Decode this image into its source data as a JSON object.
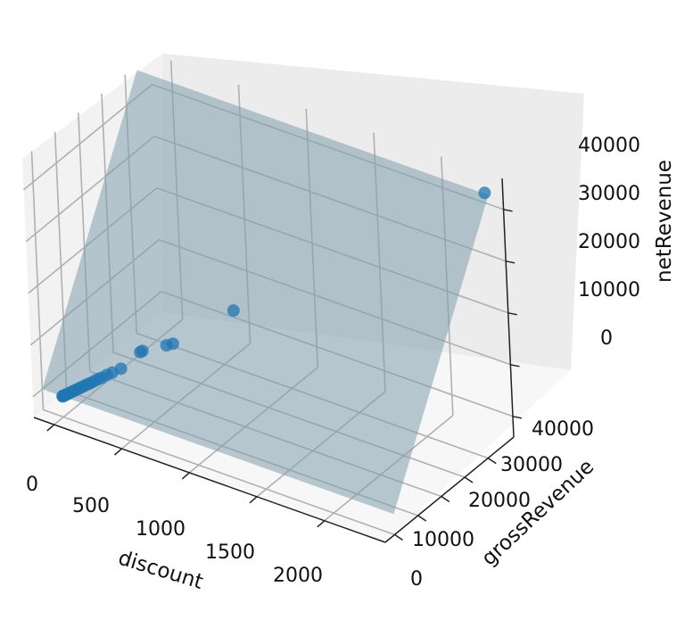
{
  "chart_data": {
    "type": "scatter3d",
    "title": "",
    "axes": {
      "x": {
        "label": "discount",
        "ticks": [
          "0",
          "500",
          "1000",
          "1500",
          "2000"
        ],
        "range": [
          -150,
          2450
        ]
      },
      "y": {
        "label": "grossRevenue",
        "ticks": [
          "0",
          "10000",
          "20000",
          "30000",
          "40000"
        ],
        "range": [
          -4000,
          51000
        ]
      },
      "z": {
        "label": "netRevenue",
        "ticks": [
          "0",
          "10000",
          "20000",
          "30000",
          "40000"
        ],
        "range": [
          -4000,
          46000
        ]
      }
    },
    "grid": true,
    "fitted_plane": {
      "color": "#7f9fad",
      "opacity": 0.55
    },
    "points_color": "#1f77b4",
    "points": [
      {
        "x": 2350,
        "y": 49000,
        "z": 43000
      },
      {
        "x": 950,
        "y": 20000,
        "z": 18000
      },
      {
        "x": 620,
        "y": 12500,
        "z": 11300
      },
      {
        "x": 580,
        "y": 12000,
        "z": 10800
      },
      {
        "x": 430,
        "y": 10200,
        "z": 9000
      },
      {
        "x": 420,
        "y": 9800,
        "z": 8800
      },
      {
        "x": 330,
        "y": 6500,
        "z": 6000
      },
      {
        "x": 280,
        "y": 5600,
        "z": 5100
      },
      {
        "x": 250,
        "y": 5000,
        "z": 4600
      },
      {
        "x": 220,
        "y": 4400,
        "z": 4000
      },
      {
        "x": 200,
        "y": 4000,
        "z": 3700
      },
      {
        "x": 180,
        "y": 3600,
        "z": 3300
      },
      {
        "x": 160,
        "y": 3200,
        "z": 2900
      },
      {
        "x": 145,
        "y": 2900,
        "z": 2650
      },
      {
        "x": 130,
        "y": 2600,
        "z": 2400
      },
      {
        "x": 115,
        "y": 2300,
        "z": 2100
      },
      {
        "x": 100,
        "y": 2000,
        "z": 1850
      },
      {
        "x": 90,
        "y": 1800,
        "z": 1650
      },
      {
        "x": 78,
        "y": 1560,
        "z": 1430
      },
      {
        "x": 66,
        "y": 1320,
        "z": 1210
      },
      {
        "x": 55,
        "y": 1100,
        "z": 1000
      },
      {
        "x": 45,
        "y": 900,
        "z": 820
      },
      {
        "x": 36,
        "y": 720,
        "z": 660
      },
      {
        "x": 28,
        "y": 560,
        "z": 510
      },
      {
        "x": 20,
        "y": 400,
        "z": 370
      },
      {
        "x": 14,
        "y": 280,
        "z": 250
      },
      {
        "x": 9,
        "y": 180,
        "z": 160
      },
      {
        "x": 5,
        "y": 100,
        "z": 90
      },
      {
        "x": 2,
        "y": 40,
        "z": 35
      },
      {
        "x": 0,
        "y": 0,
        "z": 0
      }
    ]
  }
}
